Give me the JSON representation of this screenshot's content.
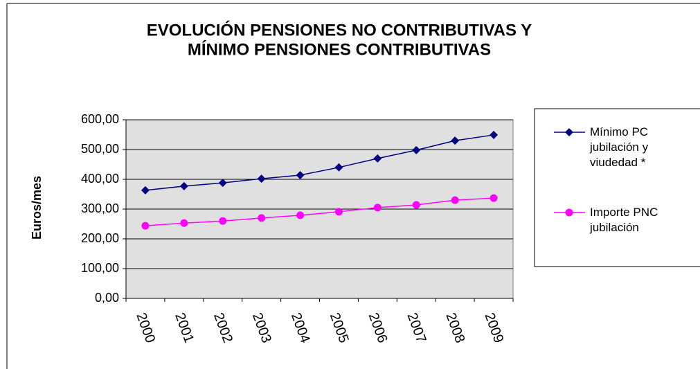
{
  "chart_data": {
    "type": "line",
    "title": "EVOLUCIÓN PENSIONES NO CONTRIBUTIVAS Y",
    "subtitle": "MÍNIMO PENSIONES CONTRIBUTIVAS",
    "y_label": "Euros/mes",
    "categories": [
      "2000",
      "2001",
      "2002",
      "2003",
      "2004",
      "2005",
      "2006",
      "2007",
      "2008",
      "2009"
    ],
    "series": [
      {
        "name": "Mínimo PC jubilación y viudedad *",
        "color": "#000080",
        "marker": "diamond",
        "values": [
          363,
          377,
          388,
          402,
          414,
          440,
          470,
          498,
          530,
          549
        ]
      },
      {
        "name": "Importe PNC jubilación",
        "color": "#ff00ff",
        "marker": "circle",
        "values": [
          244,
          253,
          260,
          270,
          279,
          291,
          305,
          314,
          330,
          337
        ]
      }
    ],
    "ylim": [
      0,
      600
    ],
    "yticks": [
      {
        "value": 0,
        "label": "0,00"
      },
      {
        "value": 100,
        "label": "100,00"
      },
      {
        "value": 200,
        "label": "200,00"
      },
      {
        "value": 300,
        "label": "300,00"
      },
      {
        "value": 400,
        "label": "400,00"
      },
      {
        "value": 500,
        "label": "500,00"
      },
      {
        "value": 600,
        "label": "600,00"
      }
    ],
    "grid": true,
    "legend": "right"
  }
}
